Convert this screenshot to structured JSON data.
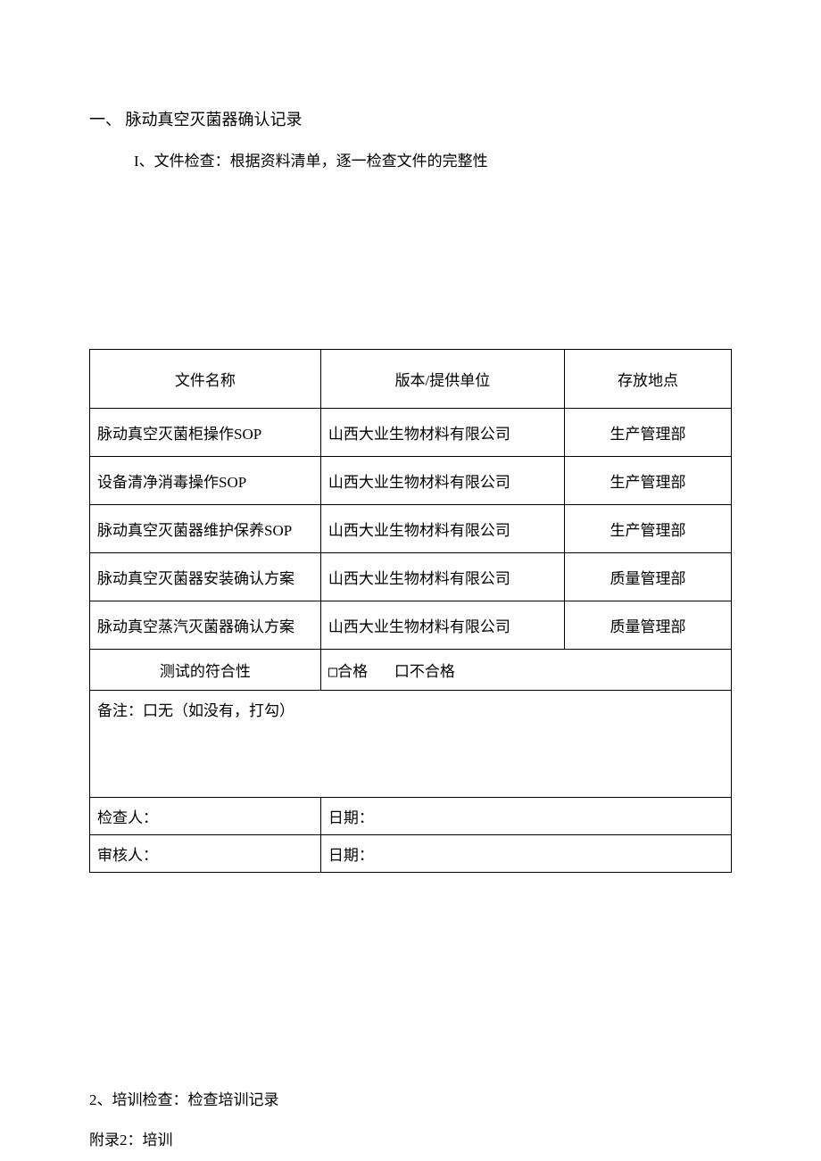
{
  "section1": {
    "title": "一、 脉动真空灭菌器确认记录",
    "subtitle": "I、文件检查：根据资料清单，逐一检查文件的完整性"
  },
  "table": {
    "headers": {
      "col1": "文件名称",
      "col2": "版本/提供单位",
      "col3": "存放地点"
    },
    "rows": [
      {
        "name": "脉动真空灭菌柜操作SOP",
        "provider": "山西大业生物材料有限公司",
        "location": "生产管理部"
      },
      {
        "name": "设备清净消毒操作SOP",
        "provider": "山西大业生物材料有限公司",
        "location": "生产管理部"
      },
      {
        "name": "脉动真空灭菌器维护保养SOP",
        "provider": "山西大业生物材料有限公司",
        "location": "生产管理部"
      },
      {
        "name": "脉动真空灭菌器安装确认方案",
        "provider": "山西大业生物材料有限公司",
        "location": "质量管理部"
      },
      {
        "name": "脉动真空蒸汽灭菌器确认方案",
        "provider": "山西大业生物材料有限公司",
        "location": "质量管理部"
      }
    ],
    "compliance": {
      "label": "测试的符合性",
      "pass": "□合格",
      "fail": "口不合格"
    },
    "notes": "备注：口无（如没有，打勾）",
    "inspector": {
      "label": "检查人：",
      "date_label": "日期："
    },
    "reviewer": {
      "label": "审核人：",
      "date_label": "日期："
    }
  },
  "section2": {
    "line1": "2、培训检查：检查培训记录",
    "line2": "附录2：培训"
  },
  "styling": {
    "background_color": "#ffffff",
    "text_color": "#000000",
    "border_color": "#000000",
    "font_size_body": 17,
    "font_size_title": 18
  }
}
